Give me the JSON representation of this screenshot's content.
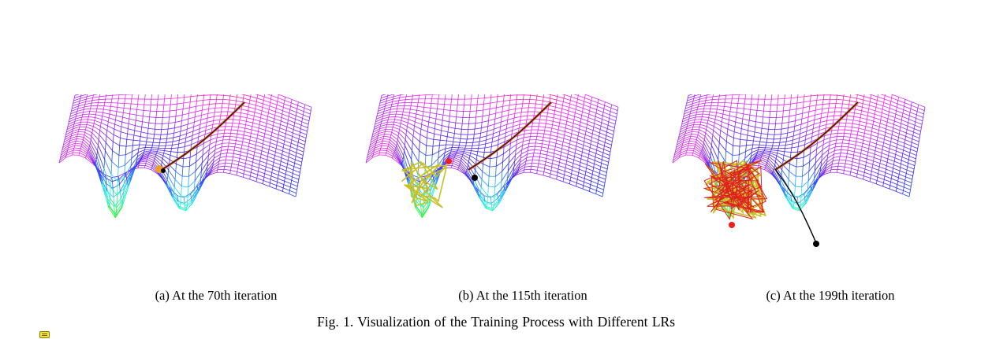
{
  "figure": {
    "panels": [
      {
        "id": "a",
        "caption": "(a) At the 70th iteration",
        "oscillation": "none",
        "end_point_color": "#f0a020"
      },
      {
        "id": "b",
        "caption": "(b) At the 115th iteration",
        "oscillation": "medium",
        "end_point_color": "#ee2020"
      },
      {
        "id": "c",
        "caption": "(c) At the 199th iteration",
        "oscillation": "heavy",
        "end_point_color": "#ee2020"
      }
    ],
    "caption": "Fig. 1.  Visualization of the Training Process with Different LRs",
    "colors": {
      "path_black": "#000000",
      "oscillation_yellow": "#c8c020",
      "oscillation_red": "#e02020",
      "trail_orange": "#e06030"
    }
  },
  "annotation_icon": "sticky-note-icon"
}
